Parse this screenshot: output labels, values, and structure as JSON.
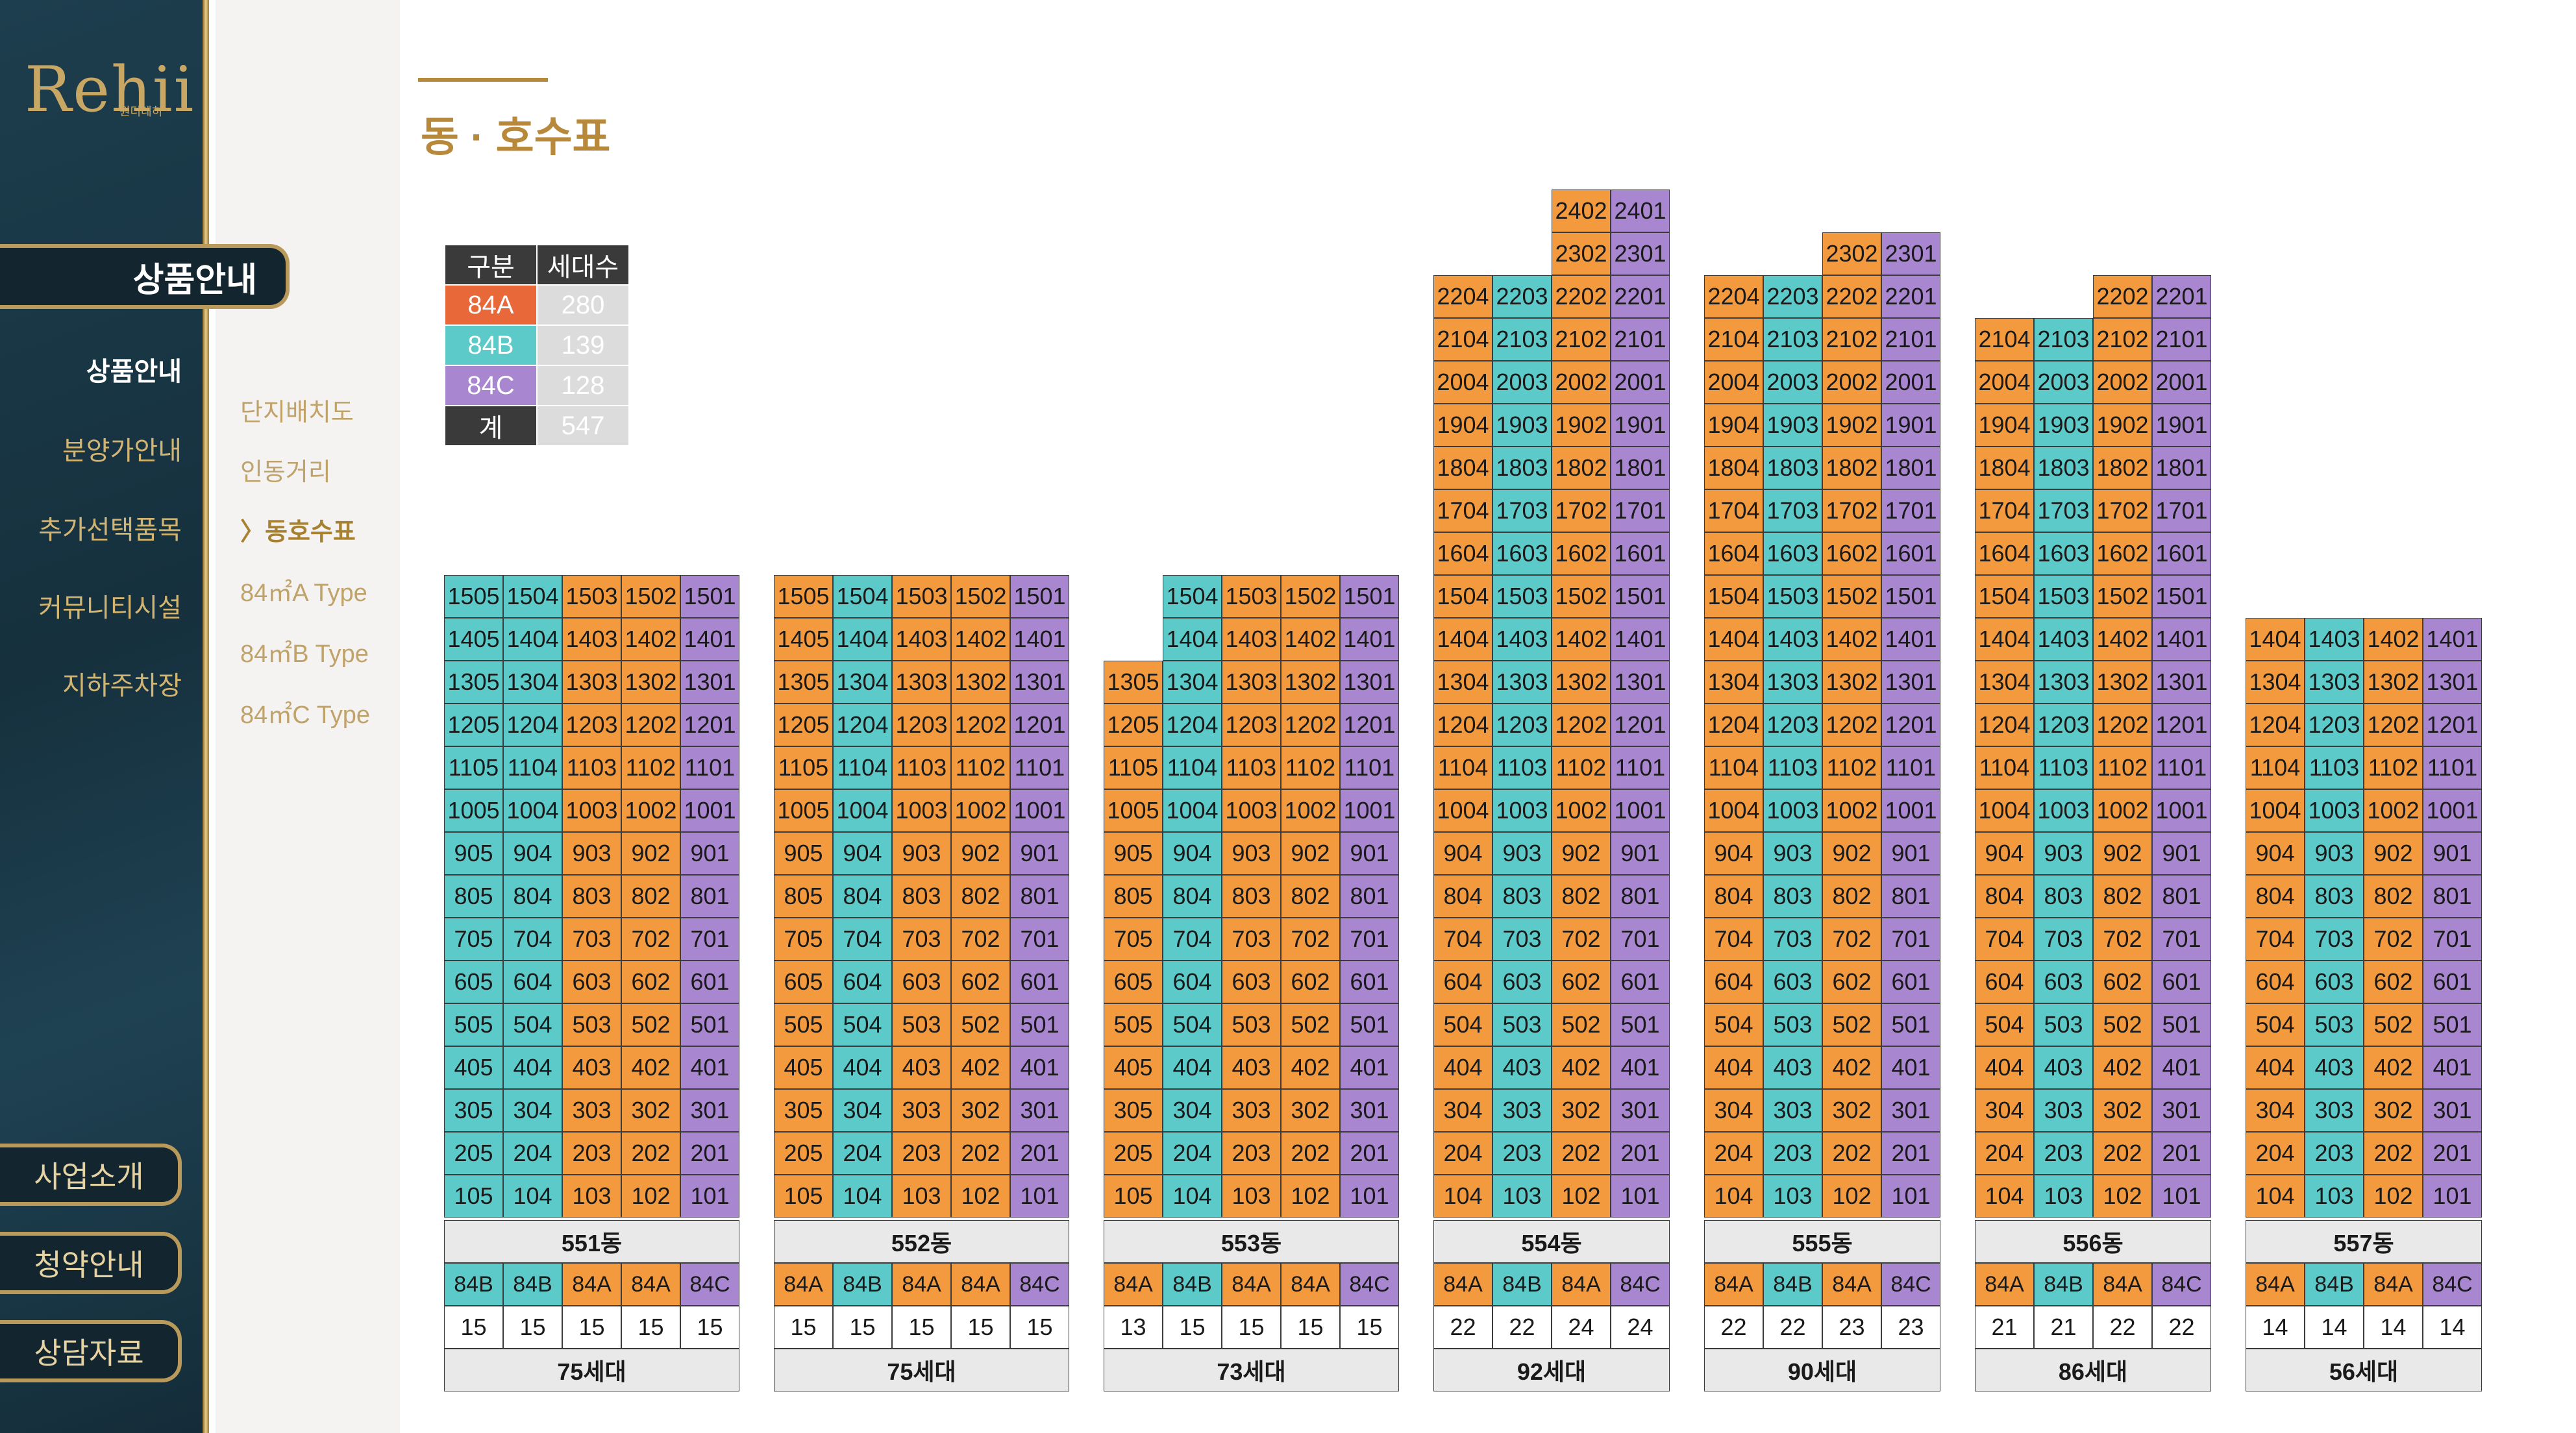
{
  "brand": {
    "logo": "Rehii",
    "logo_sub": "원더레히"
  },
  "sidebar": {
    "section_title": "상품안내",
    "menu": [
      {
        "label": "상품안내",
        "active": true
      },
      {
        "label": "분양가안내",
        "active": false
      },
      {
        "label": "추가선택품목",
        "active": false
      },
      {
        "label": "커뮤니티시설",
        "active": false
      },
      {
        "label": "지하주차장",
        "active": false
      }
    ],
    "sub_menu": [
      {
        "label": "단지배치도",
        "active": false
      },
      {
        "label": "인동거리",
        "active": false
      },
      {
        "label": "〉동호수표",
        "active": true
      },
      {
        "label": "84㎡A Type",
        "active": false
      },
      {
        "label": "84㎡B Type",
        "active": false
      },
      {
        "label": "84㎡C Type",
        "active": false
      }
    ],
    "bottom_buttons": [
      "사업소개",
      "청약안내",
      "상담자료"
    ]
  },
  "page_title": "동 · 호수표",
  "colors": {
    "A": "#f39a3e",
    "B": "#5ccac9",
    "C": "#a886d0",
    "accent": "#b8893a"
  },
  "legend": {
    "header": [
      "구분",
      "세대수"
    ],
    "rows": [
      {
        "type": "84A",
        "count": "280"
      },
      {
        "type": "84B",
        "count": "139"
      },
      {
        "type": "84C",
        "count": "128"
      },
      {
        "type": "계",
        "count": "547"
      }
    ]
  },
  "buildings": [
    {
      "name": "551동",
      "total": "75세대",
      "cols": [
        {
          "type": "B",
          "tops": 15,
          "unit": "05"
        },
        {
          "type": "B",
          "tops": 15,
          "unit": "04"
        },
        {
          "type": "A",
          "tops": 15,
          "unit": "03"
        },
        {
          "type": "A",
          "tops": 15,
          "unit": "02"
        },
        {
          "type": "C",
          "tops": 15,
          "unit": "01"
        }
      ],
      "types": [
        "84B",
        "84B",
        "84A",
        "84A",
        "84C"
      ],
      "counts": [
        "15",
        "15",
        "15",
        "15",
        "15"
      ]
    },
    {
      "name": "552동",
      "total": "75세대",
      "cols": [
        {
          "type": "A",
          "tops": 15,
          "unit": "05"
        },
        {
          "type": "B",
          "tops": 15,
          "unit": "04"
        },
        {
          "type": "A",
          "tops": 15,
          "unit": "03"
        },
        {
          "type": "A",
          "tops": 15,
          "unit": "02"
        },
        {
          "type": "C",
          "tops": 15,
          "unit": "01"
        }
      ],
      "types": [
        "84A",
        "84B",
        "84A",
        "84A",
        "84C"
      ],
      "counts": [
        "15",
        "15",
        "15",
        "15",
        "15"
      ]
    },
    {
      "name": "553동",
      "total": "73세대",
      "cols": [
        {
          "type": "A",
          "tops": 13,
          "unit": "05"
        },
        {
          "type": "B",
          "tops": 15,
          "unit": "04"
        },
        {
          "type": "A",
          "tops": 15,
          "unit": "03"
        },
        {
          "type": "A",
          "tops": 15,
          "unit": "02"
        },
        {
          "type": "C",
          "tops": 15,
          "unit": "01"
        }
      ],
      "types": [
        "84A",
        "84B",
        "84A",
        "84A",
        "84C"
      ],
      "counts": [
        "13",
        "15",
        "15",
        "15",
        "15"
      ]
    },
    {
      "name": "554동",
      "total": "92세대",
      "cols": [
        {
          "type": "A",
          "tops": 22,
          "unit": "04"
        },
        {
          "type": "B",
          "tops": 22,
          "unit": "03"
        },
        {
          "type": "A",
          "tops": 24,
          "unit": "02"
        },
        {
          "type": "C",
          "tops": 24,
          "unit": "01"
        }
      ],
      "types": [
        "84A",
        "84B",
        "84A",
        "84C"
      ],
      "counts": [
        "22",
        "22",
        "24",
        "24"
      ]
    },
    {
      "name": "555동",
      "total": "90세대",
      "cols": [
        {
          "type": "A",
          "tops": 22,
          "unit": "04"
        },
        {
          "type": "B",
          "tops": 22,
          "unit": "03"
        },
        {
          "type": "A",
          "tops": 23,
          "unit": "02"
        },
        {
          "type": "C",
          "tops": 23,
          "unit": "01"
        }
      ],
      "types": [
        "84A",
        "84B",
        "84A",
        "84C"
      ],
      "counts": [
        "22",
        "22",
        "23",
        "23"
      ]
    },
    {
      "name": "556동",
      "total": "86세대",
      "cols": [
        {
          "type": "A",
          "tops": 21,
          "unit": "04"
        },
        {
          "type": "B",
          "tops": 21,
          "unit": "03"
        },
        {
          "type": "A",
          "tops": 22,
          "unit": "02"
        },
        {
          "type": "C",
          "tops": 22,
          "unit": "01"
        }
      ],
      "types": [
        "84A",
        "84B",
        "84A",
        "84C"
      ],
      "counts": [
        "21",
        "21",
        "22",
        "22"
      ]
    },
    {
      "name": "557동",
      "total": "56세대",
      "cols": [
        {
          "type": "A",
          "tops": 14,
          "unit": "04"
        },
        {
          "type": "B",
          "tops": 14,
          "unit": "03"
        },
        {
          "type": "A",
          "tops": 14,
          "unit": "02"
        },
        {
          "type": "C",
          "tops": 14,
          "unit": "01"
        }
      ],
      "types": [
        "84A",
        "84B",
        "84A",
        "84C"
      ],
      "counts": [
        "14",
        "14",
        "14",
        "14"
      ]
    }
  ]
}
